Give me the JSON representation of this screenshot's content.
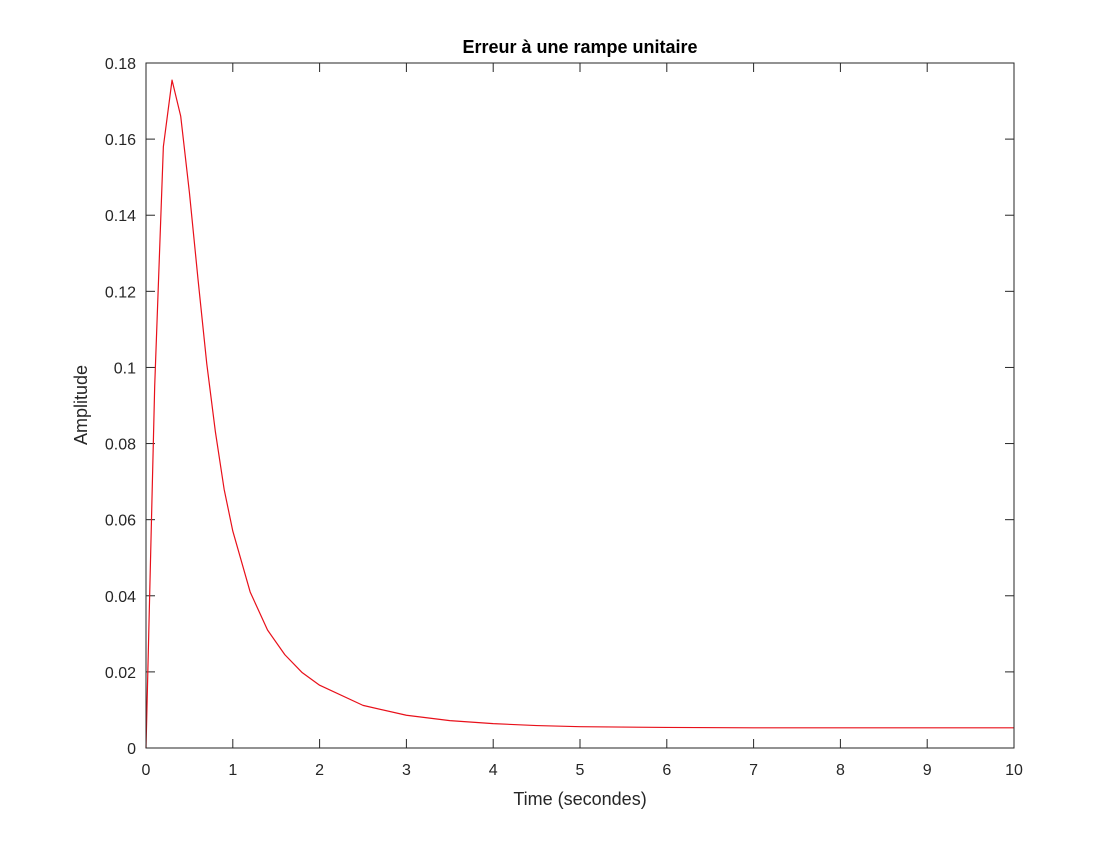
{
  "chart_data": {
    "type": "line",
    "title": "Erreur à une rampe unitaire",
    "xlabel": "Time (secondes)",
    "ylabel": "Amplitude",
    "xlim": [
      0,
      10
    ],
    "ylim": [
      0,
      0.18
    ],
    "xticks": [
      0,
      1,
      2,
      3,
      4,
      5,
      6,
      7,
      8,
      9,
      10
    ],
    "xtick_labels": [
      "0",
      "1",
      "2",
      "3",
      "4",
      "5",
      "6",
      "7",
      "8",
      "9",
      "10"
    ],
    "yticks": [
      0,
      0.02,
      0.04,
      0.06,
      0.08,
      0.1,
      0.12,
      0.14,
      0.16,
      0.18
    ],
    "ytick_labels": [
      "0",
      "0.02",
      "0.04",
      "0.06",
      "0.08",
      "0.1",
      "0.12",
      "0.14",
      "0.16",
      "0.18"
    ],
    "grid": false,
    "box": true,
    "series": [
      {
        "color": "#e8101a",
        "x": [
          0,
          0.1,
          0.2,
          0.3,
          0.4,
          0.5,
          0.6,
          0.7,
          0.8,
          0.9,
          1.0,
          1.2,
          1.4,
          1.6,
          1.8,
          2.0,
          2.5,
          3.0,
          3.5,
          4.0,
          4.5,
          5.0,
          6.0,
          7.0,
          8.0,
          9.0,
          10.0
        ],
        "y": [
          0,
          0.095,
          0.158,
          0.1755,
          0.166,
          0.146,
          0.123,
          0.101,
          0.083,
          0.068,
          0.057,
          0.041,
          0.031,
          0.0245,
          0.0198,
          0.0165,
          0.0112,
          0.0086,
          0.0072,
          0.0064,
          0.0059,
          0.0056,
          0.0054,
          0.0053,
          0.0053,
          0.0053,
          0.0053
        ]
      }
    ]
  }
}
